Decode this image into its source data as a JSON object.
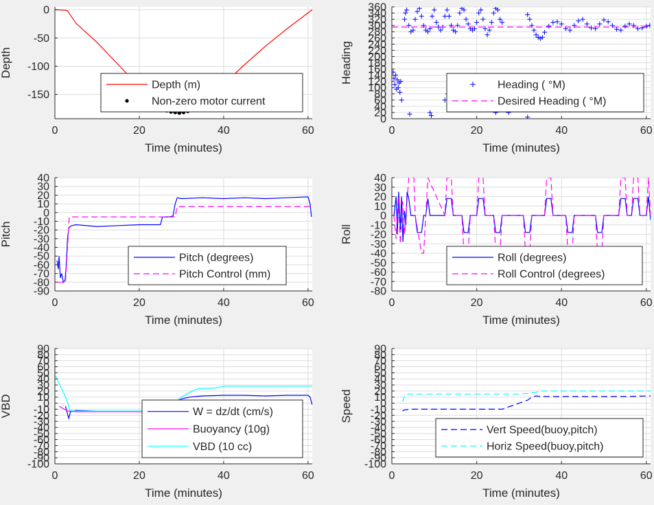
{
  "chart_data": [
    {
      "id": "depth",
      "type": "line",
      "xlabel": "Time (minutes)",
      "ylabel": "Depth",
      "xlim": [
        0,
        61
      ],
      "ylim": [
        -193,
        5
      ],
      "xticks": [
        0,
        20,
        40,
        60
      ],
      "yticks": [
        0,
        -50,
        -100,
        -150
      ],
      "grid": true,
      "legend": "lower-right",
      "series": [
        {
          "name": "Depth (m)",
          "style": "line",
          "color": "#ff0000",
          "x": [
            0,
            2.5,
            3,
            5,
            10,
            15,
            20,
            25,
            27,
            29,
            31,
            33,
            35,
            40,
            45,
            50,
            55,
            61
          ],
          "y": [
            0,
            -1,
            -2,
            -24,
            -58,
            -97,
            -137,
            -170,
            -180,
            -183,
            -181,
            -174,
            -162,
            -132,
            -97,
            -64,
            -34,
            0
          ]
        },
        {
          "name": "Non-zero motor current",
          "style": "dots",
          "color": "#000000",
          "x": [
            25.5,
            26.5,
            27.5,
            28.5,
            29.5,
            30.5,
            31.5,
            32.5,
            33.5,
            34.5,
            42.5
          ],
          "y": [
            -175,
            -179,
            -181,
            -182,
            -183,
            -182,
            -180,
            -177,
            -172,
            -168,
            -121
          ]
        }
      ]
    },
    {
      "id": "heading",
      "type": "scatter",
      "xlabel": "Time (minutes)",
      "ylabel": "Heading",
      "xlim": [
        0,
        61
      ],
      "ylim": [
        0,
        360
      ],
      "xticks": [
        0,
        20,
        40,
        60
      ],
      "yticks": [
        0,
        20,
        40,
        60,
        80,
        100,
        120,
        140,
        160,
        180,
        200,
        220,
        240,
        260,
        280,
        300,
        320,
        340,
        360
      ],
      "grid": true,
      "legend": "lower-right",
      "series": [
        {
          "name": "Heading ( °M)",
          "style": "plus",
          "color": "#0000ff",
          "x": [
            0.3,
            0.5,
            0.7,
            0.9,
            1.1,
            1.3,
            1.5,
            1.7,
            1.9,
            2.1,
            2.3,
            3.0,
            3.2,
            3.5,
            4.0,
            4.5,
            5.0,
            5.5,
            6.0,
            6.5,
            7.0,
            7.5,
            8.0,
            8.5,
            9.0,
            9.5,
            10.0,
            10.5,
            11.0,
            11.5,
            12.0,
            12.5,
            13.0,
            13.5,
            14.0,
            14.5,
            15.0,
            15.5,
            16.0,
            16.5,
            17.0,
            17.5,
            18.0,
            18.5,
            19.0,
            19.5,
            20.0,
            20.5,
            21.0,
            21.5,
            22.0,
            22.5,
            23.0,
            23.5,
            24.0,
            24.5,
            25.0,
            25.5,
            26.0,
            26.5,
            27.0,
            27.5,
            28.0,
            28.5,
            29.0,
            29.5,
            30.0,
            32.0,
            32.5,
            33.0,
            33.5,
            34.0,
            34.5,
            35.0,
            35.5,
            36.0,
            37.0,
            38.0,
            39.0,
            40.0,
            41.0,
            42.0,
            43.0,
            44.0,
            45.0,
            46.0,
            47.0,
            48.0,
            49.0,
            50.0,
            51.0,
            52.0,
            53.0,
            54.0,
            55.0,
            56.0,
            57.0,
            58.0,
            59.0,
            60.0,
            60.8,
            4.2,
            9.0,
            9.3,
            12.5,
            13.2,
            24.5,
            32.0
          ],
          "y": [
            150,
            130,
            110,
            140,
            95,
            125,
            100,
            115,
            85,
            120,
            60,
            320,
            340,
            350,
            300,
            280,
            285,
            320,
            345,
            355,
            330,
            300,
            285,
            280,
            290,
            330,
            350,
            310,
            295,
            285,
            295,
            330,
            350,
            330,
            300,
            285,
            280,
            300,
            340,
            355,
            350,
            320,
            305,
            290,
            285,
            290,
            310,
            340,
            350,
            320,
            290,
            270,
            285,
            310,
            340,
            355,
            350,
            320,
            310,
            50,
            30,
            20,
            35,
            45,
            50,
            55,
            40,
            335,
            320,
            300,
            285,
            270,
            262,
            258,
            262,
            278,
            298,
            310,
            312,
            305,
            290,
            285,
            300,
            315,
            320,
            305,
            292,
            290,
            305,
            318,
            312,
            300,
            288,
            285,
            298,
            305,
            300,
            290,
            292,
            298,
            300,
            15,
            20,
            10,
            60,
            80,
            20,
            5
          ]
        },
        {
          "name": "Desired Heading ( °M)",
          "style": "dash",
          "color": "#ff00ff",
          "x": [
            0,
            61
          ],
          "y": [
            295,
            295
          ]
        }
      ]
    },
    {
      "id": "pitch",
      "type": "line",
      "xlabel": "Time (minutes)",
      "ylabel": "Pitch",
      "xlim": [
        0,
        61
      ],
      "ylim": [
        -90,
        40
      ],
      "xticks": [
        0,
        20,
        40,
        60
      ],
      "yticks": [
        40,
        30,
        20,
        10,
        0,
        -10,
        -20,
        -30,
        -40,
        -50,
        -60,
        -70,
        -80,
        -90
      ],
      "grid": true,
      "legend": "lower-right",
      "series": [
        {
          "name": "Pitch (degrees)",
          "style": "line",
          "color": "#0000ff",
          "x": [
            0.5,
            0.8,
            1.0,
            1.3,
            1.6,
            2.0,
            2.4,
            2.7,
            3.0,
            3.3,
            3.6,
            4.0,
            5,
            10,
            15,
            20,
            25,
            25.5,
            26,
            27,
            28,
            28.5,
            29,
            30,
            35,
            40,
            45,
            50,
            55,
            60,
            60.5,
            60.8
          ],
          "y": [
            -55,
            -65,
            -50,
            -75,
            -70,
            -80,
            -78,
            -60,
            -30,
            -18,
            -16,
            -15,
            -14,
            -16,
            -15,
            -14,
            -14,
            -5,
            -5,
            -5,
            -4,
            10,
            17,
            16,
            17,
            16,
            17,
            16,
            17,
            18,
            10,
            -5
          ]
        },
        {
          "name": "Pitch Control (mm)",
          "style": "dash",
          "color": "#ff00ff",
          "x": [
            0.5,
            2.5,
            3.0,
            3.4,
            25,
            28.5,
            29,
            61
          ],
          "y": [
            -80,
            -80,
            -40,
            -5,
            -5,
            -5,
            7,
            7
          ]
        }
      ]
    },
    {
      "id": "roll",
      "type": "line",
      "xlabel": "Time (minutes)",
      "ylabel": "Roll",
      "xlim": [
        0,
        61
      ],
      "ylim": [
        -80,
        40
      ],
      "xticks": [
        0,
        20,
        40,
        60
      ],
      "yticks": [
        40,
        30,
        20,
        10,
        0,
        -10,
        -20,
        -30,
        -40,
        -50,
        -60,
        -70,
        -80
      ],
      "grid": true,
      "legend": "lower-right",
      "series": [
        {
          "name": "Roll (degrees)",
          "style": "line",
          "color": "#0000ff",
          "x": [
            0.5,
            1.0,
            1.3,
            1.6,
            2.0,
            2.3,
            2.6,
            3.0,
            3.3,
            3.6,
            4.0,
            4.5,
            5.5,
            6.0,
            7.0,
            7.5,
            8.0,
            8.5,
            9.0,
            12.5,
            13,
            14,
            14.5,
            16.5,
            17,
            18,
            18.5,
            20.0,
            20.5,
            21.5,
            22,
            24.0,
            24.5,
            25.5,
            26,
            31.0,
            31.5,
            32.5,
            33,
            36.0,
            36.5,
            37.5,
            38,
            41.0,
            41.5,
            42.5,
            43,
            48.0,
            48.5,
            49.5,
            50,
            53.5,
            54,
            55,
            55.5,
            56.5,
            57,
            58,
            58.5,
            60,
            60.5,
            61
          ],
          "y": [
            0,
            20,
            -20,
            25,
            -15,
            20,
            -28,
            5,
            -10,
            25,
            18,
            0,
            0,
            -18,
            -18,
            0,
            0,
            18,
            0,
            0,
            18,
            18,
            0,
            0,
            -18,
            -18,
            0,
            0,
            18,
            18,
            0,
            0,
            -18,
            -18,
            0,
            0,
            -18,
            -18,
            0,
            0,
            18,
            18,
            0,
            0,
            -18,
            -18,
            0,
            0,
            -18,
            -18,
            0,
            0,
            18,
            18,
            0,
            0,
            18,
            18,
            0,
            0,
            20,
            -5
          ]
        },
        {
          "name": "Roll Control (degrees)",
          "style": "dash",
          "color": "#ff00ff",
          "x": [
            0.5,
            1.0,
            1.5,
            2.0,
            2.5,
            3.0,
            3.5,
            4.0,
            5.2,
            5.5,
            7.0,
            7.5,
            8.0,
            8.5,
            12.5,
            13,
            14,
            14.5,
            16.5,
            17,
            18,
            18.5,
            20.0,
            20.5,
            21.5,
            22,
            24.0,
            24.5,
            25.5,
            26,
            31.0,
            31.5,
            32.5,
            33,
            36.0,
            36.5,
            37.5,
            38,
            41.0,
            41.5,
            42.5,
            43,
            48.0,
            48.5,
            49.5,
            50,
            53.5,
            54,
            55,
            55.5,
            56.5,
            57,
            58,
            58.5,
            60,
            60.5,
            61
          ],
          "y": [
            0,
            -25,
            20,
            -30,
            15,
            -20,
            10,
            40,
            40,
            0,
            -40,
            -40,
            0,
            40,
            0,
            40,
            40,
            0,
            0,
            -40,
            -40,
            0,
            0,
            40,
            40,
            0,
            0,
            -40,
            -40,
            0,
            0,
            -40,
            -40,
            0,
            0,
            40,
            40,
            0,
            0,
            -40,
            -40,
            0,
            0,
            -40,
            -40,
            0,
            0,
            40,
            40,
            0,
            0,
            40,
            40,
            0,
            0,
            40,
            0
          ]
        }
      ]
    },
    {
      "id": "vbd",
      "type": "line",
      "xlabel": "Time (minutes)",
      "ylabel": "VBD",
      "xlim": [
        0,
        61
      ],
      "ylim": [
        -100,
        90
      ],
      "xticks": [
        0,
        20,
        40,
        60
      ],
      "yticks": [
        90,
        80,
        70,
        60,
        50,
        40,
        30,
        20,
        10,
        0,
        -10,
        -20,
        -30,
        -40,
        -50,
        -60,
        -70,
        -80,
        -90,
        -100
      ],
      "ytick_labels": [
        "90",
        "80",
        "70",
        "60",
        "50",
        "40",
        "30",
        "20",
        "10",
        "0",
        "-10",
        "-20",
        "-30",
        "-40",
        "-50",
        "-60",
        "-70",
        "-80",
        "-90",
        "-100"
      ],
      "grid": true,
      "legend": "lower-right",
      "series": [
        {
          "name": "W = dz/dt (cm/s)",
          "style": "line",
          "color": "#0000ff",
          "x": [
            2.5,
            3.0,
            3.3,
            3.7,
            5,
            10,
            15,
            20,
            24,
            25.5,
            26,
            27,
            28,
            29,
            30,
            32,
            35,
            40,
            45,
            50,
            55,
            60,
            60.5,
            61
          ],
          "y": [
            -5,
            -18,
            -25,
            -14,
            -12,
            -13,
            -13,
            -13,
            -13,
            -13,
            -11,
            -6,
            -2,
            3,
            7,
            10,
            12,
            13,
            13,
            12,
            13,
            13,
            10,
            -3
          ]
        },
        {
          "name": "Buoyancy (10g)",
          "style": "line",
          "color": "#ff00ff",
          "x": [
            1,
            3.0,
            5,
            10,
            15,
            20,
            25,
            26,
            28,
            30,
            32,
            34
          ],
          "y": [
            -5,
            -13,
            -14,
            -14,
            -14,
            -14,
            -14,
            -14,
            -14,
            -14,
            -14,
            -14
          ]
        },
        {
          "name": "VBD (10 cc)",
          "style": "line",
          "color": "#00ffff",
          "x": [
            0.2,
            1.0,
            2.0,
            3.0,
            3.5,
            5,
            10,
            15,
            20,
            25,
            26,
            28,
            30,
            32,
            34,
            38,
            40,
            61
          ],
          "y": [
            45,
            32,
            18,
            2,
            -12,
            -13,
            -13,
            -13,
            -13,
            -13,
            -12,
            0,
            10,
            18,
            24,
            25,
            28,
            28
          ]
        }
      ]
    },
    {
      "id": "speed",
      "type": "line",
      "xlabel": "Time (minutes)",
      "ylabel": "Speed",
      "xlim": [
        0,
        61
      ],
      "ylim": [
        -100,
        90
      ],
      "xticks": [
        0,
        20,
        40,
        60
      ],
      "yticks": [
        90,
        80,
        70,
        60,
        50,
        40,
        30,
        20,
        10,
        0,
        -10,
        -20,
        -30,
        -40,
        -50,
        -60,
        -70,
        -80,
        -90,
        -100
      ],
      "ytick_labels": [
        "90",
        "80",
        "70",
        "60",
        "50",
        "40",
        "30",
        "20",
        "10",
        "0",
        "-10",
        "-20",
        "-30",
        "-40",
        "-50",
        "-60",
        "-70",
        "-80",
        "-90",
        "-100"
      ],
      "grid": true,
      "legend": "lower-right",
      "series": [
        {
          "name": "Vert Speed(buoy,pitch)",
          "style": "dash",
          "color": "#0000ff",
          "x": [
            2.5,
            3.0,
            5,
            10,
            15,
            20,
            25,
            26,
            28,
            30,
            32,
            33,
            34,
            35,
            40,
            45,
            50,
            55,
            61
          ],
          "y": [
            -13,
            -11,
            -10,
            -10,
            -10,
            -10,
            -10,
            -10,
            -5,
            0,
            5,
            10,
            12,
            11,
            11,
            11,
            11,
            11,
            12
          ]
        },
        {
          "name": "Horiz Speed(buoy,pitch)",
          "style": "dash",
          "color": "#00ffff",
          "x": [
            2.5,
            3.0,
            3.5,
            5,
            10,
            15,
            20,
            25,
            30,
            32,
            34,
            35,
            40,
            45,
            50,
            55,
            61
          ],
          "y": [
            2,
            12,
            15,
            15,
            15,
            15,
            15,
            15,
            15,
            16,
            18,
            20,
            20,
            20,
            20,
            20,
            20
          ]
        }
      ]
    }
  ]
}
